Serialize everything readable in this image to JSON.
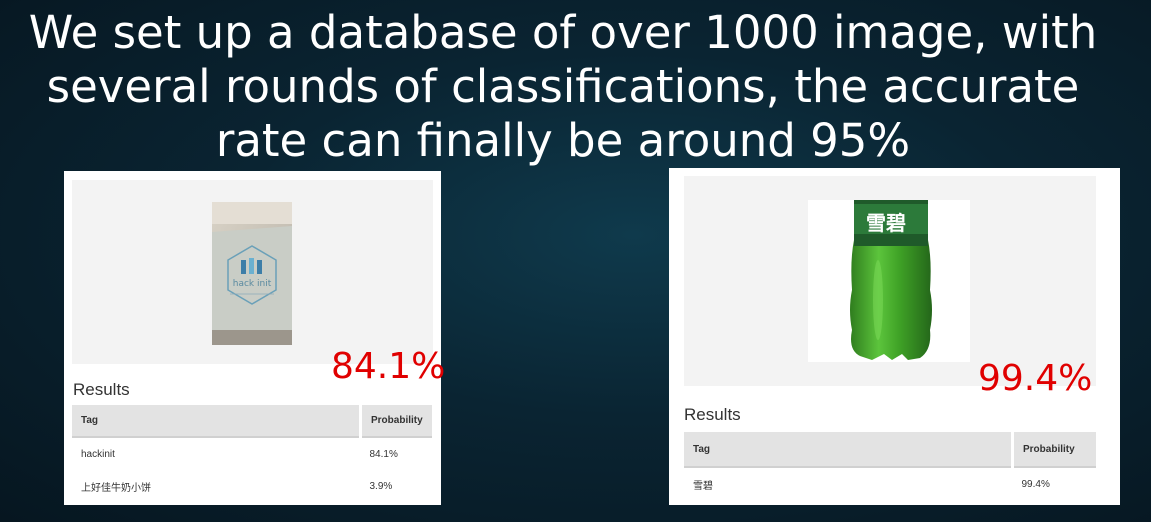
{
  "slide": {
    "title": "We set up a database of over 1000 image, with several rounds of classifications, the accurate rate can finally be around 95%"
  },
  "cards": [
    {
      "percent": "84.1%",
      "image_text": "hack init",
      "results_label": "Results",
      "columns": [
        "Tag",
        "Probability"
      ],
      "rows": [
        {
          "tag": "hackinit",
          "probability": "84.1%"
        },
        {
          "tag": "上好佳牛奶小饼",
          "probability": "3.9%"
        }
      ]
    },
    {
      "percent": "99.4%",
      "image_text": "雪碧",
      "results_label": "Results",
      "columns": [
        "Tag",
        "Probability"
      ],
      "rows": [
        {
          "tag": "雪碧",
          "probability": "99.4%"
        }
      ]
    }
  ],
  "colors": {
    "accent_percent": "#e00000",
    "background": "#0a2432",
    "table_header": "#e3e3e3"
  }
}
